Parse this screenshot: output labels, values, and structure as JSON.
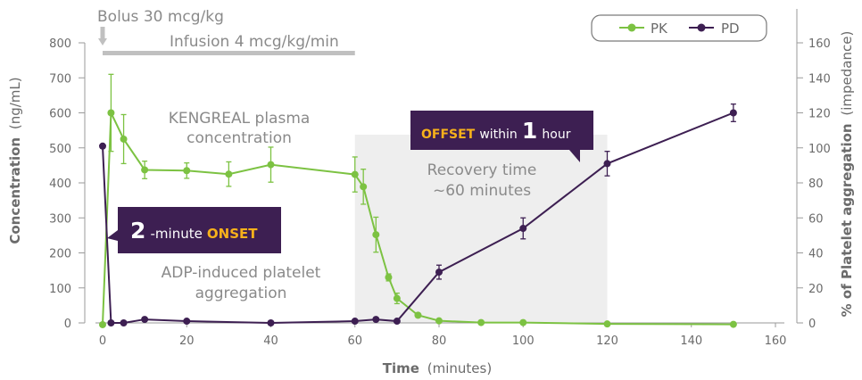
{
  "chart_data": {
    "type": "line",
    "title": "",
    "xlabel": {
      "bold": "Time",
      "rest": "(minutes)"
    },
    "ylabel_left": {
      "bold": "Concentration",
      "rest": "(ng/mL)"
    },
    "ylabel_right": {
      "bold": "% of Platelet aggregation",
      "rest": "(impedance)"
    },
    "xlim": [
      0,
      160
    ],
    "ylim_left": [
      0,
      800
    ],
    "ylim_right": [
      0,
      160
    ],
    "x_ticks": [
      "0",
      "20",
      "40",
      "60",
      "80",
      "100",
      "120",
      "140",
      "160"
    ],
    "y_ticks_left": [
      "0",
      "100",
      "200",
      "300",
      "400",
      "500",
      "600",
      "700",
      "800"
    ],
    "y_ticks_right": [
      "0",
      "20",
      "40",
      "60",
      "80",
      "100",
      "120",
      "140",
      "160"
    ],
    "legend": {
      "placement": "top-right",
      "entries": [
        "PK",
        "PD"
      ]
    },
    "series": [
      {
        "name": "PK",
        "axis": "left",
        "color": "#7cc242",
        "x": [
          0,
          2,
          5,
          10,
          20,
          30,
          40,
          60,
          62,
          65,
          68,
          70,
          75,
          80,
          90,
          100,
          120,
          150
        ],
        "y": [
          -5,
          600,
          525,
          437,
          435,
          425,
          452,
          424,
          389,
          252,
          130,
          70,
          22,
          6,
          1,
          1,
          -3,
          -4
        ],
        "err": [
          0,
          110,
          70,
          25,
          22,
          35,
          50,
          50,
          50,
          50,
          10,
          15,
          0,
          0,
          0,
          0,
          0,
          0
        ]
      },
      {
        "name": "PD",
        "axis": "right",
        "color": "#3d1f52",
        "x": [
          0,
          2,
          5,
          10,
          20,
          40,
          60,
          65,
          70,
          80,
          100,
          120,
          150
        ],
        "y": [
          101,
          0,
          0,
          2,
          1,
          0,
          1,
          2,
          1,
          29,
          54,
          91,
          120
        ],
        "err": [
          0,
          0,
          0,
          0,
          0,
          0,
          0,
          0,
          0,
          4,
          6,
          7,
          5
        ]
      }
    ],
    "annotations": {
      "bolus": "Bolus 30 mcg/kg",
      "infusion": "Infusion 4 mcg/kg/min",
      "infusion_range": [
        0,
        60
      ],
      "kengreal_line1": "KENGREAL plasma",
      "kengreal_line2": "concentration",
      "adp_line1": "ADP-induced platelet",
      "adp_line2": "aggregation",
      "recovery_line1": "Recovery time",
      "recovery_line2": "~60 minutes",
      "recovery_range": [
        60,
        120
      ],
      "onset": {
        "number": "2",
        "text": "-minute",
        "highlight": "ONSET"
      },
      "offset": {
        "highlight": "OFFSET",
        "text": "within",
        "number": "1",
        "unit": "hour"
      }
    },
    "colors": {
      "callout_bg": "#3d1f52",
      "highlight": "#f7b11b",
      "shade": "#eeeeee",
      "bar": "#c0c0c0"
    }
  }
}
